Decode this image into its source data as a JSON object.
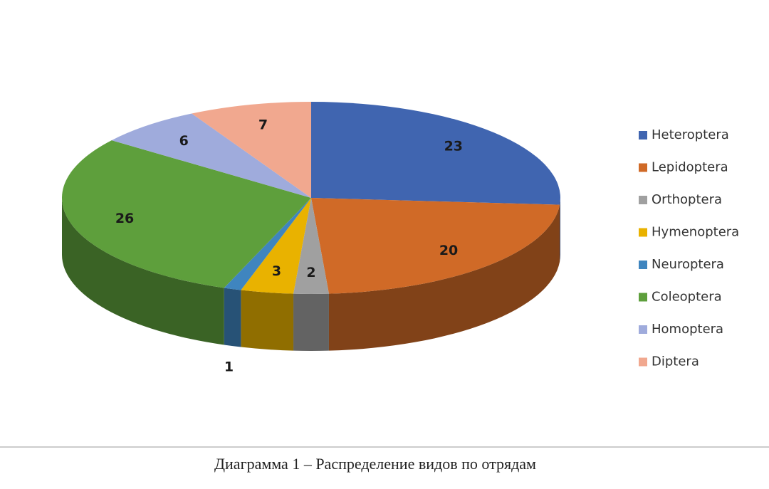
{
  "chart_data": {
    "type": "pie3d",
    "title": "Диаграмма 1 – Распределение видов по отрядам",
    "categories": [
      "Heteroptera",
      "Lepidoptera",
      "Orthoptera",
      "Hymenoptera",
      "Neuroptera",
      "Coleoptera",
      "Homoptera",
      "Diptera"
    ],
    "values": [
      23,
      20,
      2,
      3,
      1,
      26,
      6,
      7
    ],
    "colors": [
      "#4065b0",
      "#d06a27",
      "#a0a0a0",
      "#e9b200",
      "#3f85bf",
      "#5e9f3c",
      "#9fabdc",
      "#f1a88f"
    ],
    "legend": "right"
  }
}
